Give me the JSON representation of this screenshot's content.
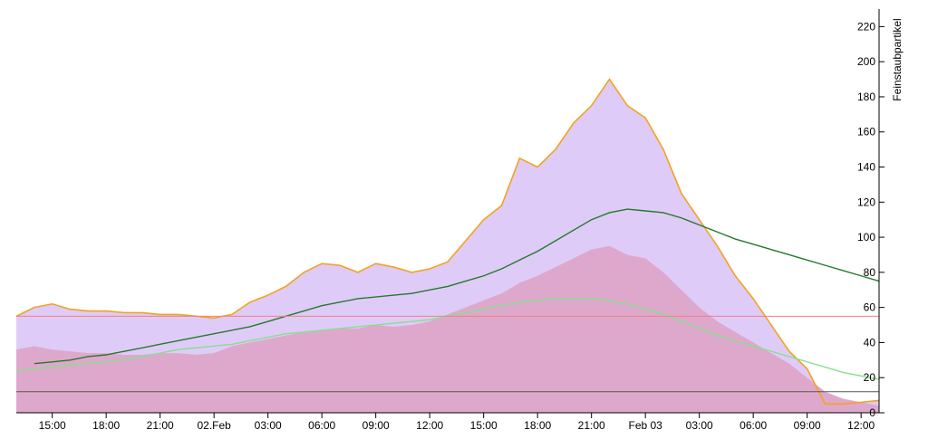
{
  "chart_data": {
    "type": "area",
    "ylabel": "Feinstaubpartikel",
    "ylim": [
      0,
      230
    ],
    "yticks": [
      0,
      20,
      40,
      60,
      80,
      100,
      120,
      140,
      160,
      180,
      200,
      220
    ],
    "xlim": [
      0,
      48
    ],
    "xticks": [
      {
        "x": 2,
        "label": "15:00"
      },
      {
        "x": 5,
        "label": "18:00"
      },
      {
        "x": 8,
        "label": "21:00"
      },
      {
        "x": 11,
        "label": "02.Feb"
      },
      {
        "x": 14,
        "label": "03:00"
      },
      {
        "x": 17,
        "label": "06:00"
      },
      {
        "x": 20,
        "label": "09:00"
      },
      {
        "x": 23,
        "label": "12:00"
      },
      {
        "x": 26,
        "label": "15:00"
      },
      {
        "x": 29,
        "label": "18:00"
      },
      {
        "x": 32,
        "label": "21:00"
      },
      {
        "x": 35,
        "label": "Feb 03"
      },
      {
        "x": 38,
        "label": "03:00"
      },
      {
        "x": 41,
        "label": "06:00"
      },
      {
        "x": 44,
        "label": "09:00"
      },
      {
        "x": 47,
        "label": "12:00"
      }
    ],
    "x": [
      0,
      1,
      2,
      3,
      4,
      5,
      6,
      7,
      8,
      9,
      10,
      11,
      12,
      13,
      14,
      15,
      16,
      17,
      18,
      19,
      20,
      21,
      22,
      23,
      24,
      25,
      26,
      27,
      28,
      29,
      30,
      31,
      32,
      33,
      34,
      35,
      36,
      37,
      38,
      39,
      40,
      41,
      42,
      43,
      44,
      45,
      46,
      47,
      48
    ],
    "series": [
      {
        "role": "upper-area",
        "values": [
          55,
          60,
          62,
          59,
          58,
          58,
          57,
          57,
          56,
          56,
          55,
          54,
          56,
          63,
          67,
          72,
          80,
          85,
          84,
          80,
          85,
          83,
          80,
          82,
          86,
          98,
          110,
          118,
          145,
          140,
          150,
          165,
          175,
          190,
          175,
          168,
          150,
          125,
          110,
          95,
          78,
          65,
          50,
          35,
          25,
          5,
          5,
          6,
          7
        ]
      },
      {
        "role": "raw-line",
        "values": [
          55,
          60,
          62,
          59,
          58,
          58,
          57,
          57,
          56,
          56,
          55,
          54,
          56,
          63,
          67,
          72,
          80,
          85,
          84,
          80,
          85,
          83,
          80,
          82,
          86,
          98,
          110,
          118,
          145,
          140,
          150,
          165,
          175,
          190,
          175,
          168,
          150,
          125,
          110,
          95,
          78,
          65,
          50,
          35,
          25,
          5,
          5,
          6,
          7
        ]
      },
      {
        "role": "lower-area",
        "values": [
          36,
          38,
          36,
          35,
          34,
          34,
          33,
          33,
          34,
          34,
          33,
          34,
          38,
          40,
          42,
          44,
          46,
          47,
          48,
          48,
          50,
          49,
          50,
          52,
          56,
          60,
          64,
          68,
          74,
          78,
          83,
          88,
          93,
          95,
          90,
          88,
          80,
          70,
          60,
          52,
          46,
          40,
          34,
          28,
          20,
          12,
          8,
          6,
          4
        ]
      },
      {
        "role": "dark-green",
        "values": [
          null,
          28,
          29,
          30,
          32,
          33,
          35,
          37,
          39,
          41,
          43,
          45,
          47,
          49,
          52,
          55,
          58,
          61,
          63,
          65,
          66,
          67,
          68,
          70,
          72,
          75,
          78,
          82,
          87,
          92,
          98,
          104,
          110,
          114,
          116,
          115,
          114,
          111,
          107,
          103,
          99,
          96,
          93,
          90,
          87,
          84,
          81,
          78,
          75
        ]
      },
      {
        "role": "light-green",
        "values": [
          24,
          25,
          26,
          27,
          28,
          29,
          30,
          32,
          34,
          36,
          37,
          38,
          39,
          41,
          43,
          45,
          46,
          47,
          48,
          49,
          50,
          51,
          52,
          53,
          55,
          57,
          59,
          61,
          63,
          64,
          65,
          65,
          65,
          64,
          62,
          59,
          56,
          52,
          48,
          44,
          41,
          38,
          35,
          32,
          29,
          26,
          23,
          21,
          19
        ]
      }
    ],
    "hlines": [
      {
        "value": 55,
        "color": "#f08080"
      },
      {
        "value": 12,
        "color": "#555555"
      }
    ],
    "colors": {
      "upper_area": "#dfcbf8",
      "lower_area": "#dea8cc",
      "raw_line": "#f5a21e",
      "dark_green": "#237a2c",
      "light_green": "#86e08a",
      "background": "#ffffff"
    }
  }
}
